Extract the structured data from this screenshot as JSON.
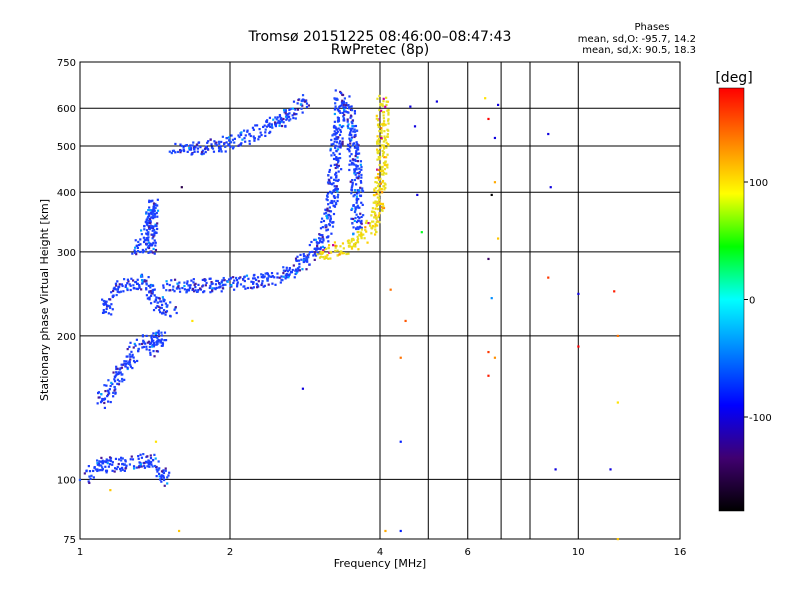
{
  "chart_data": {
    "type": "scatter",
    "title": "Tromsø 20151225 08:46:00–08:47:43",
    "subtitle": "RwPretec (8p)",
    "xlabel": "Frequency [MHz]",
    "ylabel": "Stationary phase Virtual Height [km]",
    "x_scale": "log",
    "y_scale": "log",
    "xlim": [
      1,
      16
    ],
    "ylim": [
      75,
      750
    ],
    "x_ticks": [
      1,
      2,
      4,
      6,
      10,
      16
    ],
    "x_gridlines": [
      2,
      4,
      5,
      6,
      7,
      8,
      10
    ],
    "y_ticks": [
      75,
      100,
      200,
      300,
      400,
      500,
      600,
      750
    ],
    "grid": true,
    "phases_box": {
      "title": "Phases",
      "line1": "mean, sd,O: -95.7, 14.2",
      "line2": "mean, sd,X:  90.5, 18.3"
    },
    "colorbar": {
      "label": "[deg]",
      "range": [
        -180,
        180
      ],
      "ticks": [
        100,
        0,
        -100
      ],
      "colors": [
        "#ff0000",
        "#ff8000",
        "#ffff00",
        "#00ff00",
        "#00ffff",
        "#0080ff",
        "#0000ff",
        "#400070",
        "#000000"
      ]
    },
    "series": [
      {
        "trace": "O-mode echo trace",
        "color": "#1a3cff",
        "dense_bands": [
          [
            [
              1.02,
              100
            ],
            [
              1.12,
              108
            ],
            [
              1.22,
              107
            ],
            [
              1.38,
              110
            ],
            [
              1.5,
              100
            ]
          ],
          [
            [
              1.1,
              145
            ],
            [
              1.2,
              165
            ],
            [
              1.3,
              190
            ],
            [
              1.45,
              200
            ],
            [
              1.4,
              185
            ]
          ],
          [
            [
              1.12,
              225
            ],
            [
              1.2,
              255
            ],
            [
              1.35,
              260
            ],
            [
              1.45,
              230
            ],
            [
              1.55,
              225
            ]
          ],
          [
            [
              1.3,
              300
            ],
            [
              1.38,
              330
            ],
            [
              1.4,
              380
            ],
            [
              1.38,
              300
            ]
          ],
          [
            [
              1.5,
              255
            ],
            [
              1.8,
              255
            ],
            [
              2.1,
              258
            ],
            [
              2.4,
              262
            ],
            [
              2.7,
              275
            ],
            [
              2.9,
              295
            ],
            [
              3.1,
              325
            ],
            [
              3.2,
              380
            ],
            [
              3.25,
              460
            ],
            [
              3.3,
              560
            ],
            [
              3.35,
              640
            ]
          ],
          [
            [
              1.55,
              490
            ],
            [
              1.9,
              500
            ],
            [
              2.2,
              525
            ],
            [
              2.6,
              575
            ],
            [
              2.85,
              625
            ]
          ],
          [
            [
              3.4,
              620
            ],
            [
              3.5,
              560
            ],
            [
              3.55,
              480
            ],
            [
              3.6,
              400
            ],
            [
              3.6,
              330
            ]
          ]
        ]
      },
      {
        "trace": "X-mode echo trace",
        "color": "#e8e020",
        "dense_bands": [
          [
            [
              3.0,
              298
            ],
            [
              3.2,
              300
            ],
            [
              3.5,
              310
            ],
            [
              3.8,
              330
            ],
            [
              3.95,
              360
            ],
            [
              4.0,
              400
            ],
            [
              4.05,
              480
            ],
            [
              4.05,
              560
            ],
            [
              4.05,
              625
            ]
          ]
        ]
      },
      {
        "trace": "Scattered echoes",
        "points": [
          {
            "x": 4.7,
            "y": 550,
            "phase": -100
          },
          {
            "x": 4.75,
            "y": 395,
            "phase": -100
          },
          {
            "x": 4.6,
            "y": 605,
            "phase": -100
          },
          {
            "x": 4.4,
            "y": 180,
            "phase": 140
          },
          {
            "x": 4.2,
            "y": 250,
            "phase": 140
          },
          {
            "x": 4.5,
            "y": 215,
            "phase": 150
          },
          {
            "x": 4.85,
            "y": 330,
            "phase": 40
          },
          {
            "x": 5.2,
            "y": 620,
            "phase": -100
          },
          {
            "x": 6.5,
            "y": 630,
            "phase": 100
          },
          {
            "x": 6.6,
            "y": 570,
            "phase": 180
          },
          {
            "x": 6.7,
            "y": 395,
            "phase": -180
          },
          {
            "x": 6.9,
            "y": 610,
            "phase": -100
          },
          {
            "x": 6.8,
            "y": 520,
            "phase": -100
          },
          {
            "x": 6.8,
            "y": 420,
            "phase": 120
          },
          {
            "x": 6.9,
            "y": 320,
            "phase": 110
          },
          {
            "x": 6.6,
            "y": 290,
            "phase": -140
          },
          {
            "x": 6.7,
            "y": 240,
            "phase": -40
          },
          {
            "x": 6.6,
            "y": 185,
            "phase": 160
          },
          {
            "x": 6.6,
            "y": 165,
            "phase": 170
          },
          {
            "x": 6.8,
            "y": 180,
            "phase": 130
          },
          {
            "x": 4.4,
            "y": 120,
            "phase": -80
          },
          {
            "x": 4.4,
            "y": 78,
            "phase": -80
          },
          {
            "x": 4.1,
            "y": 78,
            "phase": 120
          },
          {
            "x": 8.7,
            "y": 530,
            "phase": -100
          },
          {
            "x": 8.8,
            "y": 410,
            "phase": -100
          },
          {
            "x": 8.7,
            "y": 265,
            "phase": 160
          },
          {
            "x": 9.0,
            "y": 105,
            "phase": -100
          },
          {
            "x": 10.0,
            "y": 245,
            "phase": -100
          },
          {
            "x": 10.0,
            "y": 190,
            "phase": 180
          },
          {
            "x": 11.8,
            "y": 248,
            "phase": 170
          },
          {
            "x": 11.6,
            "y": 105,
            "phase": -100
          },
          {
            "x": 12.0,
            "y": 200,
            "phase": 140
          },
          {
            "x": 12.0,
            "y": 145,
            "phase": 100
          },
          {
            "x": 12.0,
            "y": 75,
            "phase": 110
          },
          {
            "x": 2.8,
            "y": 155,
            "phase": -100
          },
          {
            "x": 1.6,
            "y": 410,
            "phase": -150
          },
          {
            "x": 1.68,
            "y": 215,
            "phase": 100
          },
          {
            "x": 1.58,
            "y": 78,
            "phase": 110
          },
          {
            "x": 1.15,
            "y": 95,
            "phase": 110
          },
          {
            "x": 1.42,
            "y": 120,
            "phase": 100
          }
        ]
      }
    ]
  }
}
